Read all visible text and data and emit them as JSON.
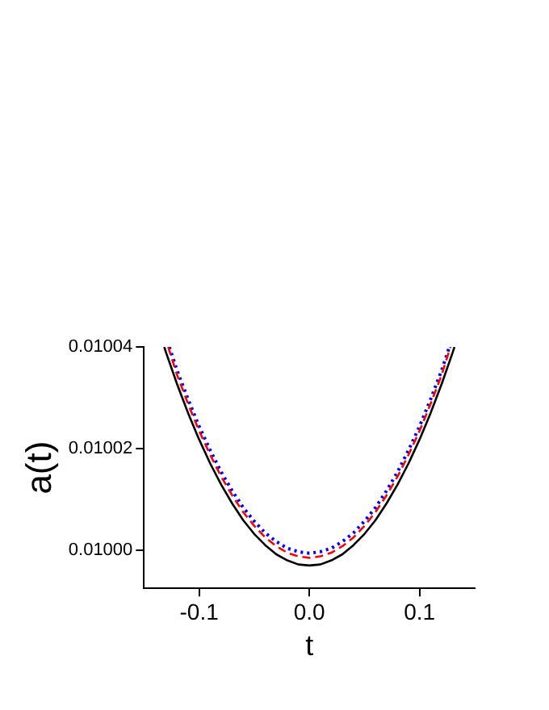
{
  "chart_data": {
    "type": "line",
    "xlabel": "t",
    "ylabel": "a(t)",
    "xlim": [
      -0.15,
      0.15
    ],
    "ylim": [
      0.0099925,
      0.01004
    ],
    "xticks": [
      {
        "value": -0.1,
        "label": "-0.1"
      },
      {
        "value": 0,
        "label": "0.0"
      },
      {
        "value": 0.1,
        "label": "0.1"
      }
    ],
    "yticks": [
      {
        "value": 0.01,
        "label": "0.01000"
      },
      {
        "value": 0.01002,
        "label": "0.01002"
      },
      {
        "value": 0.01004,
        "label": "0.01004"
      }
    ],
    "grid": false,
    "legend": false,
    "marker": "none",
    "series": [
      {
        "color": "#000000",
        "line_style": "solid",
        "x": [
          -0.1316,
          -0.13,
          -0.12,
          -0.11,
          -0.1,
          -0.09,
          -0.08,
          -0.07,
          -0.06,
          -0.05,
          -0.04,
          -0.03,
          -0.02,
          -0.01,
          0,
          0.01,
          0.02,
          0.03,
          0.04,
          0.05,
          0.06,
          0.07,
          0.08,
          0.09,
          0.1,
          0.11,
          0.12,
          0.13,
          0.1316
        ],
        "values": [
          0.01004,
          0.0100389,
          0.0100327,
          0.010027,
          0.0100218,
          0.0100171,
          0.0100129,
          0.0100092,
          0.0100059,
          0.0100032,
          0.010001,
          0.0099992,
          0.009998,
          0.0099972,
          0.009997,
          0.0099972,
          0.009998,
          0.0099992,
          0.010001,
          0.0100032,
          0.0100059,
          0.0100092,
          0.0100129,
          0.0100171,
          0.0100218,
          0.010027,
          0.0100327,
          0.0100389,
          0.01004
        ]
      },
      {
        "color": "#ff0000",
        "line_style": "dashed",
        "x": [
          -0.128,
          -0.12,
          -0.11,
          -0.1,
          -0.09,
          -0.08,
          -0.07,
          -0.06,
          -0.05,
          -0.04,
          -0.03,
          -0.02,
          -0.01,
          0,
          0.01,
          0.02,
          0.03,
          0.04,
          0.05,
          0.06,
          0.07,
          0.08,
          0.09,
          0.1,
          0.11,
          0.12,
          0.128
        ],
        "values": [
          0.01004,
          0.0100345,
          0.0100288,
          0.0100235,
          0.0100188,
          0.0100145,
          0.0100108,
          0.0100075,
          0.0100048,
          0.0100025,
          0.0100008,
          0.0099995,
          0.0099988,
          0.0099985,
          0.0099988,
          0.0099995,
          0.0100008,
          0.0100025,
          0.0100048,
          0.0100075,
          0.0100108,
          0.0100145,
          0.0100188,
          0.0100235,
          0.0100288,
          0.0100345,
          0.01004
        ]
      },
      {
        "color": "#0000ff",
        "line_style": "dotted",
        "x": [
          -0.127,
          -0.12,
          -0.11,
          -0.1,
          -0.09,
          -0.08,
          -0.07,
          -0.06,
          -0.05,
          -0.04,
          -0.03,
          -0.02,
          -0.01,
          0,
          0.01,
          0.02,
          0.03,
          0.04,
          0.05,
          0.06,
          0.07,
          0.08,
          0.09,
          0.1,
          0.11,
          0.12,
          0.127
        ],
        "values": [
          0.01004,
          0.0100354,
          0.0100297,
          0.0100244,
          0.0100197,
          0.0100154,
          0.0100117,
          0.0100084,
          0.0100057,
          0.0100034,
          0.0100017,
          0.0100004,
          0.0099997,
          0.0099994,
          0.0099997,
          0.0100004,
          0.0100017,
          0.0100034,
          0.0100057,
          0.0100084,
          0.0100117,
          0.0100154,
          0.0100197,
          0.0100244,
          0.0100297,
          0.0100354,
          0.01004
        ]
      }
    ]
  }
}
